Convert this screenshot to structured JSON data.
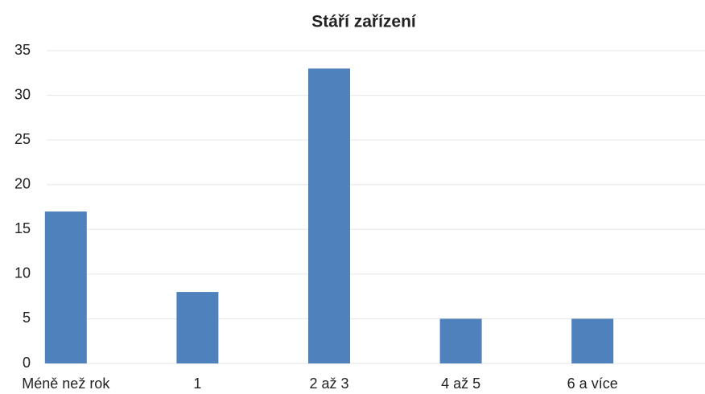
{
  "chart_data": {
    "type": "bar",
    "title": "Stáří zařízení",
    "categories": [
      "Méně než rok",
      "1",
      "2 až 3",
      "4 až 5",
      "6 a více"
    ],
    "values": [
      17,
      8,
      33,
      5,
      5
    ],
    "color": "#4f81bd",
    "ylim": [
      0,
      35
    ],
    "yticks": [
      0,
      5,
      10,
      15,
      20,
      25,
      30,
      35
    ],
    "grid": true
  }
}
